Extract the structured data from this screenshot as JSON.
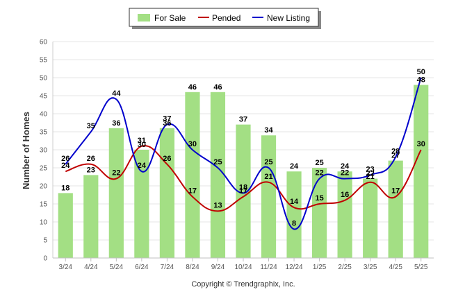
{
  "chart_data": {
    "type": "bar",
    "categories": [
      "3/24",
      "4/24",
      "5/24",
      "6/24",
      "7/24",
      "8/24",
      "9/24",
      "10/24",
      "11/24",
      "12/24",
      "1/25",
      "2/25",
      "3/25",
      "4/25",
      "5/25"
    ],
    "series": [
      {
        "name": "For Sale",
        "type": "bar",
        "color": "#a3df84",
        "values": [
          18,
          23,
          36,
          30,
          36,
          46,
          46,
          37,
          34,
          24,
          25,
          24,
          22,
          27,
          48
        ]
      },
      {
        "name": "Pended",
        "type": "line",
        "color": "#c00000",
        "values": [
          24,
          26,
          22,
          31,
          26,
          17,
          13,
          17,
          21,
          14,
          15,
          16,
          21,
          17,
          30
        ]
      },
      {
        "name": "New Listing",
        "type": "line",
        "color": "#0000cc",
        "values": [
          26,
          35,
          44,
          24,
          37,
          30,
          25,
          18,
          25,
          8,
          22,
          22,
          23,
          28,
          50
        ]
      }
    ],
    "ylabel": "Number of Homes",
    "xlabel": "",
    "ylim": [
      0,
      60
    ],
    "yticks": [
      0,
      5,
      10,
      15,
      20,
      25,
      30,
      35,
      40,
      45,
      50,
      55,
      60
    ],
    "grid": true,
    "legend_position": "top-center"
  },
  "footer": {
    "copyright": "Copyright © Trendgraphix, Inc."
  }
}
